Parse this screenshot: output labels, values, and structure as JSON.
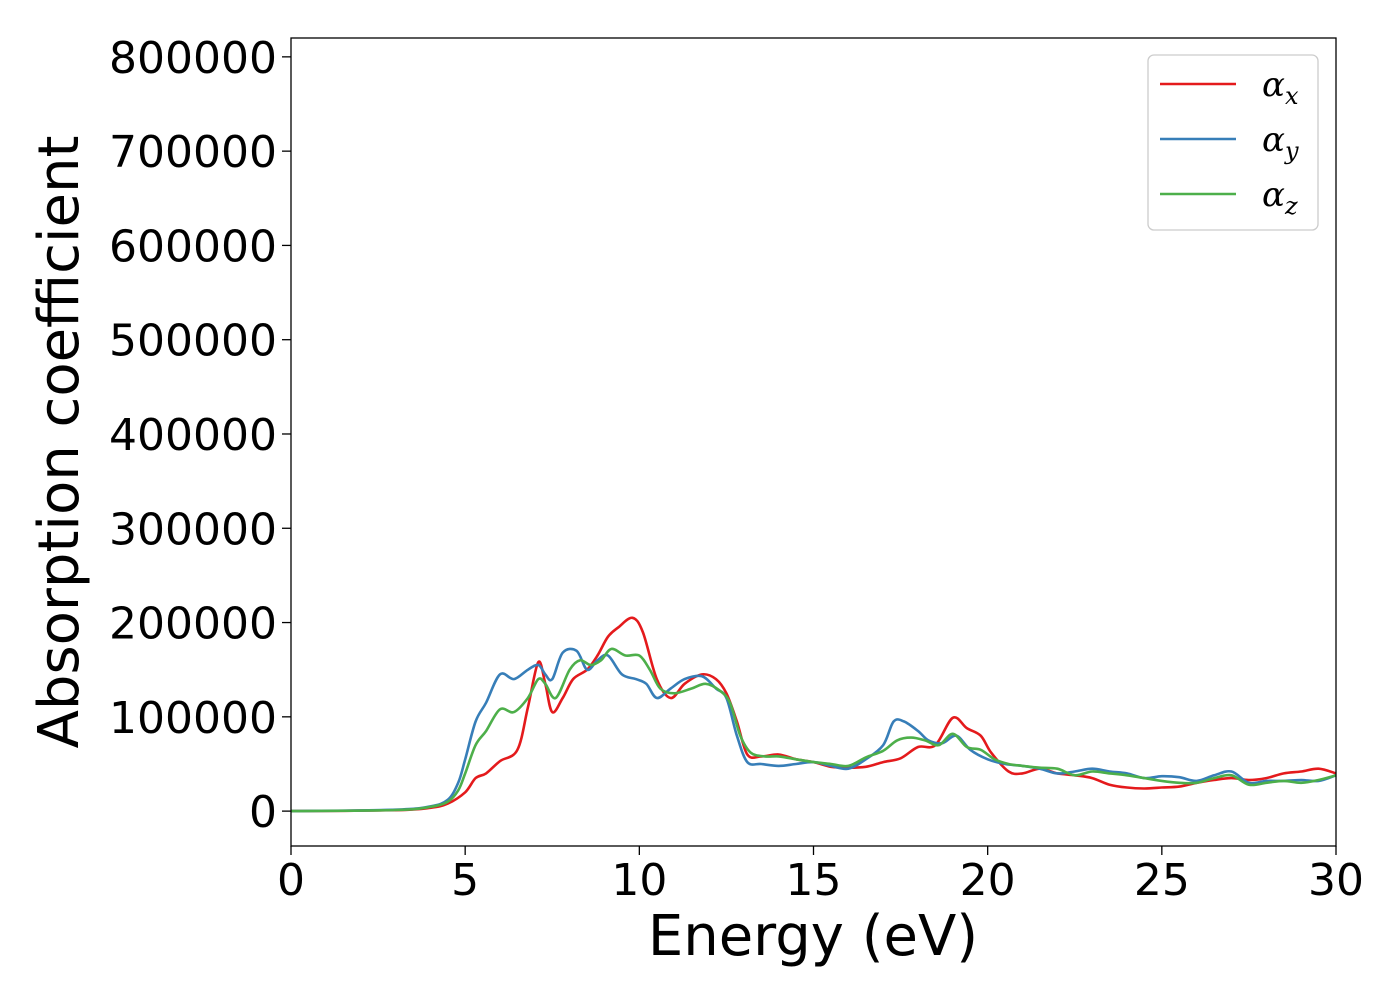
{
  "chart_data": {
    "type": "line",
    "title": "",
    "xlabel": "Energy (eV)",
    "ylabel": "Absorption coefficient",
    "xlim": [
      0,
      30
    ],
    "ylim": [
      -37000,
      820000
    ],
    "xticks": [
      0,
      5,
      10,
      15,
      20,
      25,
      30
    ],
    "yticks": [
      0,
      100000,
      200000,
      300000,
      400000,
      500000,
      600000,
      700000,
      800000
    ],
    "xtick_labels": [
      "0",
      "5",
      "10",
      "15",
      "20",
      "25",
      "30"
    ],
    "ytick_labels": [
      "0",
      "100000",
      "200000",
      "300000",
      "400000",
      "500000",
      "600000",
      "700000",
      "800000"
    ],
    "grid": false,
    "legend_position": "top-right",
    "series": [
      {
        "name": "αx",
        "symbol": "α",
        "subscript": "x",
        "color": "#e41a1c",
        "x": [
          0,
          3,
          4,
          4.5,
          5,
          5.3,
          5.6,
          6,
          6.5,
          6.8,
          7.1,
          7.3,
          7.5,
          7.8,
          8.1,
          8.5,
          8.8,
          9.1,
          9.4,
          9.8,
          10.1,
          10.5,
          10.9,
          11.3,
          11.8,
          12.2,
          12.5,
          12.8,
          13.1,
          13.5,
          14,
          14.5,
          15,
          15.5,
          16,
          16.5,
          17,
          17.5,
          18,
          18.5,
          19,
          19.4,
          19.8,
          20.1,
          20.6,
          21,
          21.5,
          22,
          22.5,
          23,
          23.5,
          24,
          24.5,
          25,
          25.5,
          26,
          26.5,
          27,
          27.5,
          28,
          28.5,
          29,
          29.5,
          30
        ],
        "y": [
          0,
          1000,
          3500,
          8000,
          20000,
          35000,
          40000,
          53000,
          65000,
          110000,
          158000,
          135000,
          105000,
          120000,
          140000,
          150000,
          165000,
          185000,
          195000,
          205000,
          190000,
          140000,
          120000,
          135000,
          145000,
          140000,
          125000,
          95000,
          60000,
          58000,
          60000,
          55000,
          52000,
          47000,
          46000,
          47000,
          52000,
          56000,
          68000,
          70000,
          99000,
          88000,
          80000,
          62000,
          42000,
          40000,
          45000,
          40000,
          38000,
          35000,
          28000,
          25000,
          24000,
          25000,
          26000,
          30000,
          33000,
          35000,
          33000,
          35000,
          40000,
          42000,
          45000,
          40000
        ]
      },
      {
        "name": "αy",
        "symbol": "α",
        "subscript": "y",
        "color": "#377eb8",
        "x": [
          0,
          3,
          4,
          4.5,
          4.8,
          5,
          5.3,
          5.6,
          6,
          6.4,
          6.8,
          7.1,
          7.3,
          7.5,
          7.8,
          8.2,
          8.5,
          8.8,
          9.1,
          9.5,
          9.9,
          10.2,
          10.5,
          10.9,
          11.3,
          11.8,
          12.2,
          12.5,
          12.8,
          13.1,
          13.5,
          14,
          14.5,
          15,
          15.5,
          16,
          16.5,
          17,
          17.3,
          17.6,
          18,
          18.3,
          18.7,
          19.1,
          19.5,
          20,
          20.5,
          21,
          21.5,
          22,
          22.5,
          23,
          23.5,
          24,
          24.5,
          25,
          25.5,
          26,
          26.5,
          27,
          27.5,
          28,
          28.5,
          29,
          29.5,
          30
        ],
        "y": [
          0,
          1500,
          5000,
          12000,
          30000,
          55000,
          95000,
          115000,
          145000,
          140000,
          150000,
          155000,
          145000,
          140000,
          168000,
          170000,
          150000,
          160000,
          165000,
          145000,
          140000,
          135000,
          120000,
          130000,
          140000,
          143000,
          130000,
          120000,
          80000,
          52000,
          50000,
          48000,
          50000,
          52000,
          48000,
          45000,
          55000,
          70000,
          95000,
          95000,
          85000,
          75000,
          72000,
          80000,
          65000,
          55000,
          50000,
          48000,
          45000,
          40000,
          42000,
          45000,
          42000,
          40000,
          35000,
          37000,
          36000,
          32000,
          38000,
          42000,
          30000,
          32000,
          32000,
          33000,
          32000,
          38000
        ]
      },
      {
        "name": "αz",
        "symbol": "α",
        "subscript": "z",
        "color": "#4daf4a",
        "x": [
          0,
          3,
          4,
          4.5,
          4.8,
          5,
          5.3,
          5.6,
          6,
          6.4,
          6.8,
          7.1,
          7.3,
          7.6,
          8,
          8.3,
          8.6,
          8.9,
          9.2,
          9.6,
          10,
          10.3,
          10.6,
          11,
          11.5,
          11.9,
          12.3,
          12.6,
          12.9,
          13.2,
          13.6,
          14,
          14.5,
          15,
          15.5,
          16,
          16.5,
          17,
          17.4,
          17.8,
          18.2,
          18.6,
          19,
          19.4,
          19.8,
          20.2,
          20.6,
          21,
          21.5,
          22,
          22.5,
          23,
          23.5,
          24,
          24.5,
          25,
          25.5,
          26,
          26.5,
          27,
          27.5,
          28,
          28.5,
          29,
          29.5,
          30
        ],
        "y": [
          0,
          1200,
          4500,
          10000,
          22000,
          40000,
          70000,
          85000,
          108000,
          105000,
          120000,
          140000,
          135000,
          120000,
          150000,
          160000,
          155000,
          160000,
          172000,
          165000,
          165000,
          150000,
          130000,
          125000,
          130000,
          135000,
          128000,
          115000,
          80000,
          62000,
          58000,
          58000,
          55000,
          52000,
          50000,
          48000,
          57000,
          64000,
          75000,
          78000,
          75000,
          70000,
          82000,
          68000,
          65000,
          55000,
          50000,
          48000,
          46000,
          45000,
          38000,
          42000,
          40000,
          38000,
          35000,
          32000,
          30000,
          30000,
          35000,
          38000,
          28000,
          30000,
          32000,
          30000,
          33000,
          38000
        ]
      }
    ]
  }
}
